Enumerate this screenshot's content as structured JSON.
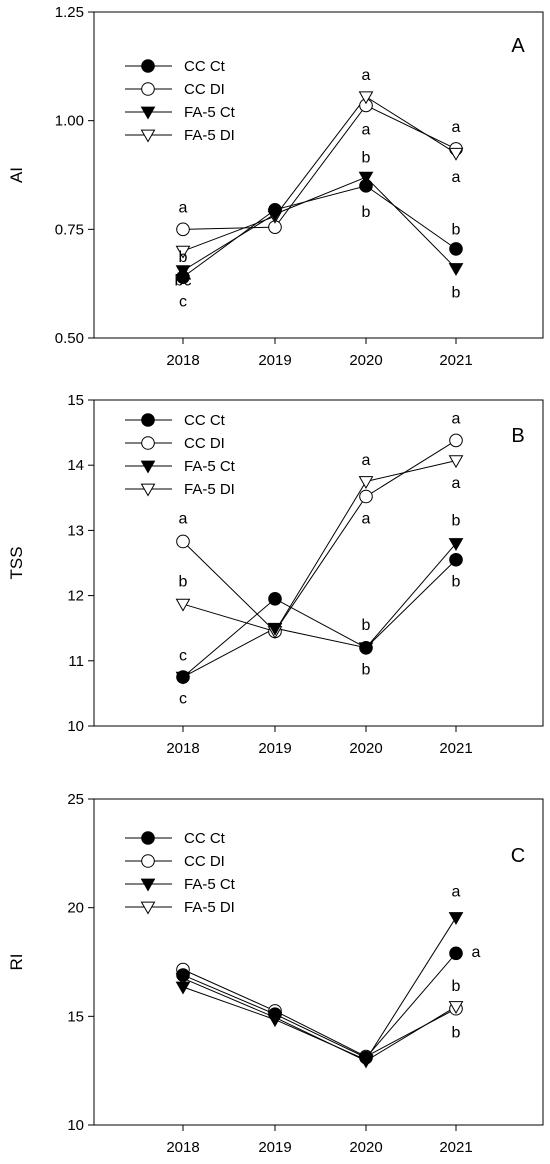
{
  "chart_data": [
    {
      "type": "line",
      "panel_label": "A",
      "ylabel": "AI",
      "categories": [
        "2018",
        "2019",
        "2020",
        "2021"
      ],
      "ylim": [
        0.5,
        1.25
      ],
      "yticks": [
        "0.50",
        "0.75",
        "1.00",
        "1.25"
      ],
      "legend": "top-left",
      "grid": false,
      "series": [
        {
          "name": "CC Ct",
          "marker": "circle-filled",
          "values": [
            0.64,
            0.795,
            0.85,
            0.705
          ]
        },
        {
          "name": "CC DI",
          "marker": "circle-open",
          "values": [
            0.75,
            0.755,
            1.035,
            0.935
          ]
        },
        {
          "name": "FA-5 Ct",
          "marker": "triangle-down-filled",
          "values": [
            0.655,
            0.785,
            0.87,
            0.66
          ]
        },
        {
          "name": "FA-5 DI",
          "marker": "triangle-down-open",
          "values": [
            0.7,
            0.78,
            1.055,
            0.925
          ]
        }
      ],
      "annotations": [
        {
          "text": "a",
          "x": "2018",
          "y": 0.8
        },
        {
          "text": "b",
          "x": "2018",
          "y": 0.686
        },
        {
          "text": "bc",
          "x": "2018",
          "y": 0.632
        },
        {
          "text": "c",
          "x": "2018",
          "y": 0.584
        },
        {
          "text": "a",
          "x": "2020",
          "y": 1.105
        },
        {
          "text": "a",
          "x": "2020",
          "y": 0.98
        },
        {
          "text": "b",
          "x": "2020",
          "y": 0.915
        },
        {
          "text": "b",
          "x": "2020",
          "y": 0.79
        },
        {
          "text": "a",
          "x": "2021",
          "y": 0.985
        },
        {
          "text": "a",
          "x": "2021",
          "y": 0.87
        },
        {
          "text": "b",
          "x": "2021",
          "y": 0.75
        },
        {
          "text": "b",
          "x": "2021",
          "y": 0.605
        }
      ]
    },
    {
      "type": "line",
      "panel_label": "B",
      "ylabel": "TSS",
      "categories": [
        "2018",
        "2019",
        "2020",
        "2021"
      ],
      "ylim": [
        10,
        15
      ],
      "yticks": [
        "10",
        "11",
        "12",
        "13",
        "14",
        "15"
      ],
      "legend": "top-left",
      "grid": false,
      "series": [
        {
          "name": "CC Ct",
          "marker": "circle-filled",
          "values": [
            10.75,
            11.95,
            11.2,
            12.55
          ]
        },
        {
          "name": "CC DI",
          "marker": "circle-open",
          "values": [
            12.83,
            11.45,
            13.52,
            14.38
          ]
        },
        {
          "name": "FA-5 Ct",
          "marker": "triangle-down-filled",
          "values": [
            10.75,
            11.5,
            11.2,
            12.8
          ]
        },
        {
          "name": "FA-5 DI",
          "marker": "triangle-down-open",
          "values": [
            11.87,
            11.45,
            13.75,
            14.07
          ]
        }
      ],
      "annotations": [
        {
          "text": "a",
          "x": "2018",
          "y": 13.18
        },
        {
          "text": "b",
          "x": "2018",
          "y": 12.22
        },
        {
          "text": "c",
          "x": "2018",
          "y": 11.08
        },
        {
          "text": "c",
          "x": "2018",
          "y": 10.42
        },
        {
          "text": "a",
          "x": "2020",
          "y": 14.08
        },
        {
          "text": "a",
          "x": "2020",
          "y": 13.18
        },
        {
          "text": "b",
          "x": "2020",
          "y": 11.55
        },
        {
          "text": "b",
          "x": "2020",
          "y": 10.87
        },
        {
          "text": "a",
          "x": "2021",
          "y": 14.72
        },
        {
          "text": "a",
          "x": "2021",
          "y": 13.73
        },
        {
          "text": "b",
          "x": "2021",
          "y": 13.15
        },
        {
          "text": "b",
          "x": "2021",
          "y": 12.22
        }
      ]
    },
    {
      "type": "line",
      "panel_label": "C",
      "ylabel": "RI",
      "categories": [
        "2018",
        "2019",
        "2020",
        "2021"
      ],
      "ylim": [
        10,
        25
      ],
      "yticks": [
        "10",
        "15",
        "20",
        "25"
      ],
      "legend": "top-left",
      "grid": false,
      "series": [
        {
          "name": "CC Ct",
          "marker": "circle-filled",
          "values": [
            16.9,
            15.1,
            13.1,
            17.9
          ]
        },
        {
          "name": "CC DI",
          "marker": "circle-open",
          "values": [
            17.15,
            15.25,
            13.15,
            15.35
          ]
        },
        {
          "name": "FA-5 Ct",
          "marker": "triangle-down-filled",
          "values": [
            16.35,
            14.85,
            13.0,
            19.55
          ]
        },
        {
          "name": "FA-5 DI",
          "marker": "triangle-down-open",
          "values": [
            16.75,
            14.95,
            12.95,
            15.45
          ]
        }
      ],
      "annotations": [
        {
          "text": "a",
          "x": "2021",
          "y": 20.75,
          "dx": 0
        },
        {
          "text": "a",
          "x": "2021",
          "y": 17.95,
          "dx": 20
        },
        {
          "text": "b",
          "x": "2021",
          "y": 16.4,
          "dx": 0
        },
        {
          "text": "b",
          "x": "2021",
          "y": 14.25,
          "dx": 0
        }
      ]
    }
  ]
}
